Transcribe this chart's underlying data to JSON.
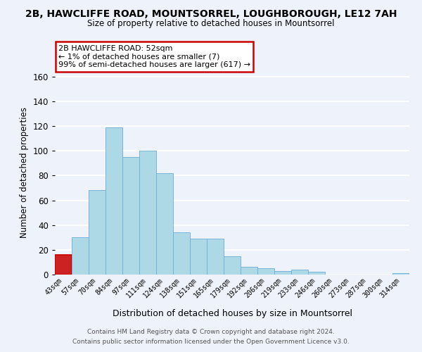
{
  "title_line1": "2B, HAWCLIFFE ROAD, MOUNTSORREL, LOUGHBOROUGH, LE12 7AH",
  "title_line2": "Size of property relative to detached houses in Mountsorrel",
  "xlabel": "Distribution of detached houses by size in Mountsorrel",
  "ylabel": "Number of detached properties",
  "footer_line1": "Contains HM Land Registry data © Crown copyright and database right 2024.",
  "footer_line2": "Contains public sector information licensed under the Open Government Licence v3.0.",
  "bin_labels": [
    "43sqm",
    "57sqm",
    "70sqm",
    "84sqm",
    "97sqm",
    "111sqm",
    "124sqm",
    "138sqm",
    "151sqm",
    "165sqm",
    "179sqm",
    "192sqm",
    "206sqm",
    "219sqm",
    "233sqm",
    "246sqm",
    "260sqm",
    "273sqm",
    "287sqm",
    "300sqm",
    "314sqm"
  ],
  "bar_heights": [
    16,
    30,
    68,
    119,
    95,
    100,
    82,
    34,
    29,
    29,
    15,
    6,
    5,
    3,
    4,
    2,
    0,
    0,
    0,
    0,
    1
  ],
  "bar_color": "#add8e6",
  "highlight_bar_index": 0,
  "highlight_bar_color": "#cc2222",
  "highlight_bar_edge_color": "#cc0000",
  "normal_bar_edge_color": "#6baed6",
  "annotation_box_text": "2B HAWCLIFFE ROAD: 52sqm\n← 1% of detached houses are smaller (7)\n99% of semi-detached houses are larger (617) →",
  "annotation_box_facecolor": "white",
  "annotation_box_edgecolor": "#cc0000",
  "ylim": [
    0,
    165
  ],
  "yticks": [
    0,
    20,
    40,
    60,
    80,
    100,
    120,
    140,
    160
  ],
  "background_color": "#eef2fa",
  "grid_color": "white"
}
